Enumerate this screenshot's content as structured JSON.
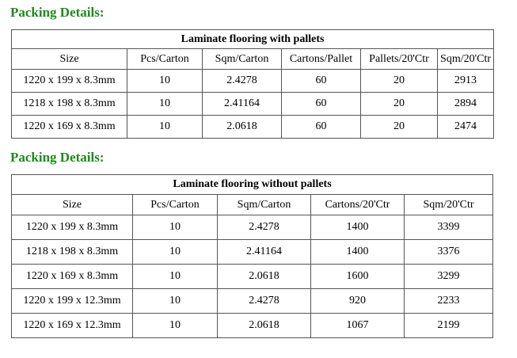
{
  "section1": {
    "heading": "Packing Details:",
    "title": "Laminate flooring with pallets",
    "headers": [
      "Size",
      "Pcs/Carton",
      "Sqm/Carton",
      "Cartons/Pallet",
      "Pallets/20'Ctr",
      "Sqm/20'Ctr"
    ],
    "rows": [
      [
        "1220 x 199 x 8.3mm",
        "10",
        "2.4278",
        "60",
        "20",
        "2913"
      ],
      [
        "1218 x 198 x 8.3mm",
        "10",
        "2.41164",
        "60",
        "20",
        "2894"
      ],
      [
        "1220 x 169 x 8.3mm",
        "10",
        "2.0618",
        "60",
        "20",
        "2474"
      ]
    ]
  },
  "section2": {
    "heading": "Packing Details:",
    "title": "Laminate flooring without pallets",
    "headers": [
      "Size",
      "Pcs/Carton",
      "Sqm/Carton",
      "Cartons/20'Ctr",
      "Sqm/20'Ctr"
    ],
    "rows": [
      [
        "1220 x 199 x 8.3mm",
        "10",
        "2.4278",
        "1400",
        "3399"
      ],
      [
        "1218 x 198 x 8.3mm",
        "10",
        "2.41164",
        "1400",
        "3376"
      ],
      [
        "1220 x 169 x 8.3mm",
        "10",
        "2.0618",
        "1600",
        "3299"
      ],
      [
        "1220 x 199 x 12.3mm",
        "10",
        "2.4278",
        "920",
        "2233"
      ],
      [
        "1220 x 169 x 12.3mm",
        "10",
        "2.0618",
        "1067",
        "2199"
      ]
    ]
  }
}
